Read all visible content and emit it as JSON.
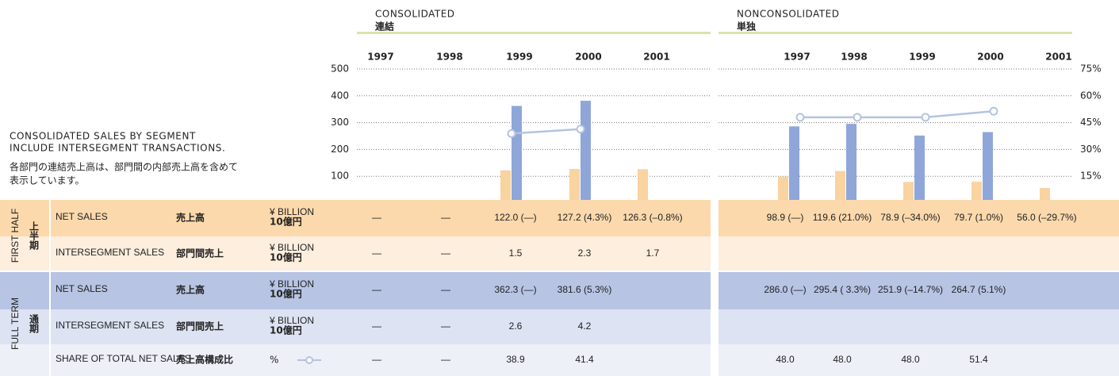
{
  "notes": [
    "CONSOLIDATED SALES BY SEGMENT",
    "INCLUDE INTERSEGMENT TRANSACTIONS.",
    "各部門の連結売上高は、部門間の内部売上高を含めて",
    "表示しています。"
  ],
  "chart_data": [
    {
      "type": "bar",
      "title": "CONSOLIDATED",
      "subtitle": "連結",
      "categories": [
        "1997",
        "1998",
        "1999",
        "2000",
        "2001"
      ],
      "ylim": [
        0,
        500
      ],
      "yticks": [
        100,
        200,
        300,
        400,
        500
      ],
      "y2lim": [
        0,
        75
      ],
      "grid": true,
      "series": [
        {
          "color": "#f9d3a0",
          "values": [
            null,
            null,
            122.0,
            127.2,
            126.3
          ],
          "value_labels": [
            "—",
            "—",
            "122.0 (—)",
            "127.2 (4.3%)",
            "126.3 (–0.8%)"
          ]
        },
        {
          "color": "#8fa6d9",
          "values": [
            null,
            null,
            362.3,
            381.6,
            null
          ],
          "value_labels": [
            "—",
            "—",
            "362.3 (—)",
            "381.6 (5.3%)",
            null
          ]
        },
        {
          "type": "line",
          "axis": "y2",
          "color": "#b5c3e0",
          "values": [
            null,
            null,
            38.9,
            41.4,
            null
          ],
          "value_labels": [
            "—",
            "—",
            "38.9",
            "41.4",
            null
          ]
        }
      ]
    },
    {
      "type": "bar",
      "title": "NONCONSOLIDATED",
      "subtitle": "単独",
      "categories": [
        "1997",
        "1998",
        "1999",
        "2000",
        "2001"
      ],
      "ylim": [
        0,
        500
      ],
      "y2lim": [
        0,
        75
      ],
      "y2ticks": [
        {
          "value": 15,
          "label": "15%"
        },
        {
          "value": 30,
          "label": "30%"
        },
        {
          "value": 45,
          "label": "45%"
        },
        {
          "value": 60,
          "label": "60%"
        },
        {
          "value": 75,
          "label": "75%"
        }
      ],
      "grid": true,
      "series": [
        {
          "color": "#f9d3a0",
          "values": [
            98.9,
            119.6,
            78.9,
            79.7,
            56.0
          ],
          "value_labels": [
            "98.9 (—)",
            "119.6 (21.0%)",
            "78.9 (–34.0%)",
            "79.7 (1.0%)",
            "56.0 (–29.7%)"
          ]
        },
        {
          "color": "#8fa6d9",
          "values": [
            286.0,
            295.4,
            251.9,
            264.7,
            null
          ],
          "value_labels": [
            "286.0 (—)",
            "295.4 ( 3.3%)",
            "251.9 (–14.7%)",
            "264.7 (5.1%)",
            null
          ]
        },
        {
          "type": "line",
          "axis": "y2",
          "color": "#b5c3e0",
          "values": [
            48.0,
            48.0,
            48.0,
            51.4,
            null
          ],
          "value_labels": [
            "48.0",
            "48.0",
            "48.0",
            "51.4",
            null
          ]
        }
      ]
    }
  ],
  "table": {
    "groups": [
      {
        "label": "FIRST HALF",
        "label_ja": "上半期",
        "rows": [
          {
            "label": "NET SALES",
            "label_ja": "売上高",
            "unit": "¥ BILLION",
            "unit_ja": "10億円"
          },
          {
            "label": "INTERSEGMENT SALES",
            "label_ja": "部門間売上",
            "unit": "¥ BILLION",
            "unit_ja": "10億円",
            "cells": [
              [
                "—",
                "—",
                "1.5",
                "2.3",
                "1.7"
              ]
            ]
          }
        ]
      },
      {
        "label": "FULL TERM",
        "label_ja": "通期",
        "rows": [
          {
            "label": "NET SALES",
            "label_ja": "売上高",
            "unit": "¥ BILLION",
            "unit_ja": "10億円"
          },
          {
            "label": "INTERSEGMENT SALES",
            "label_ja": "部門間売上",
            "unit": "¥ BILLION",
            "unit_ja": "10億円",
            "cells": [
              [
                "—",
                "—",
                "2.6",
                "4.2"
              ]
            ]
          },
          {
            "label": "SHARE OF TOTAL NET SALES",
            "label_ja": "売上高構成比",
            "unit": "%"
          }
        ]
      }
    ]
  }
}
